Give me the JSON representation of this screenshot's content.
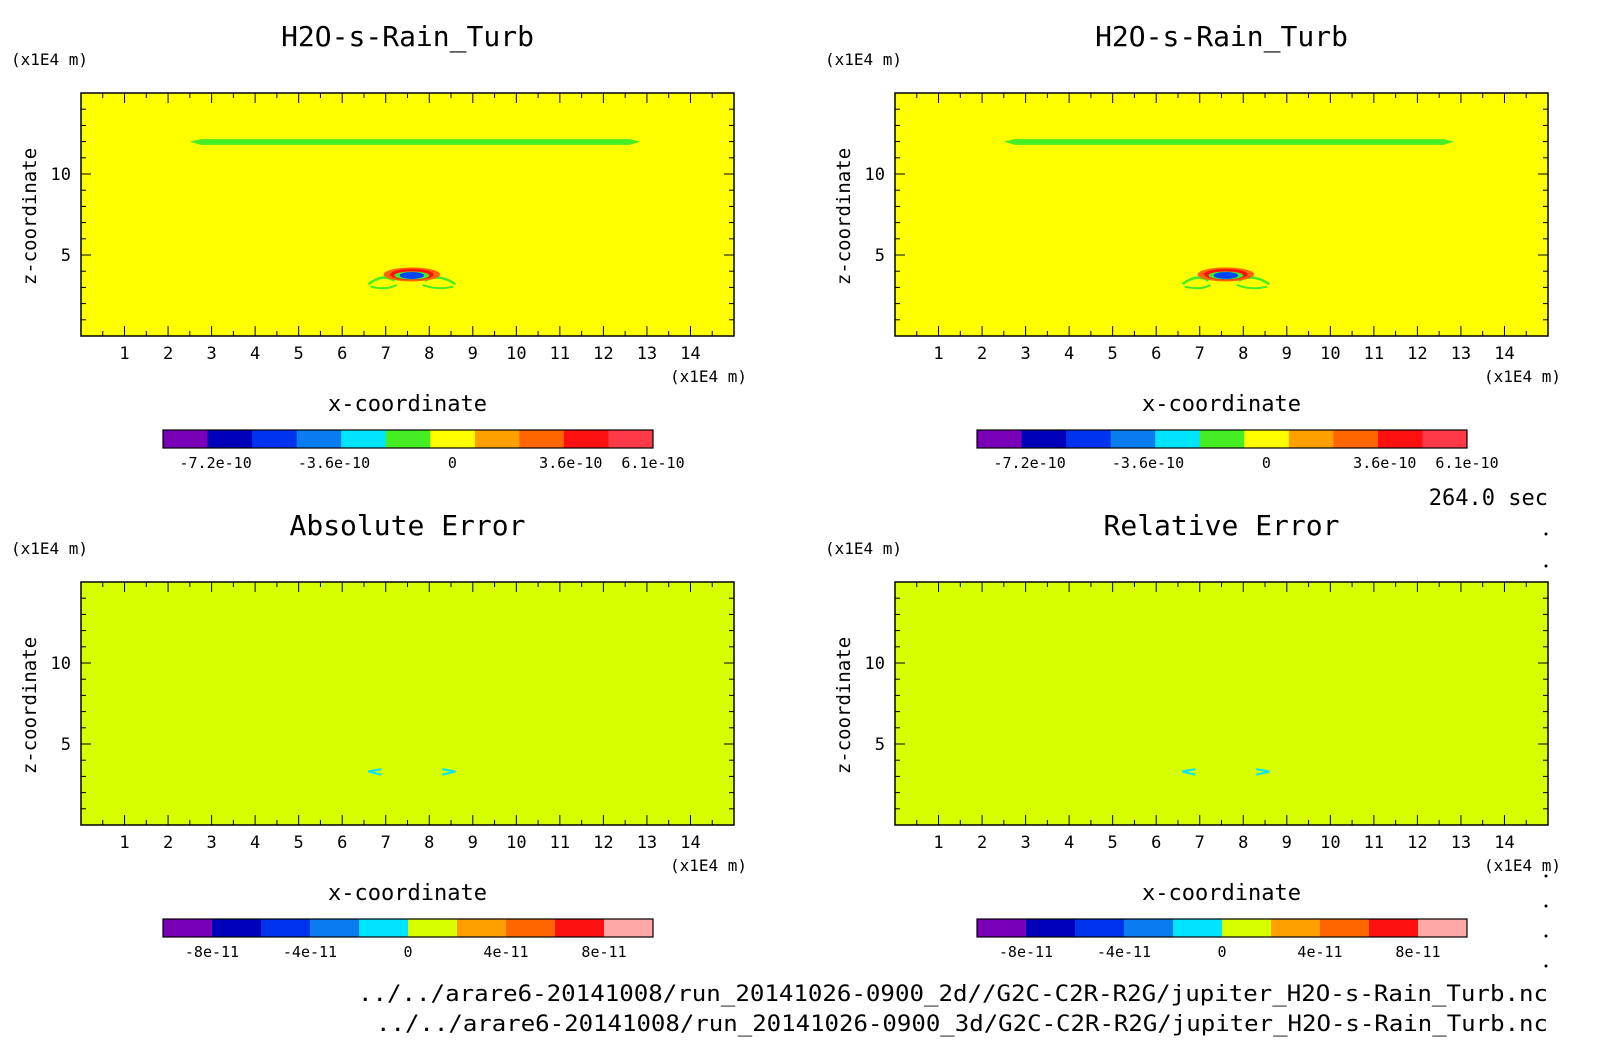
{
  "colors": {
    "yellow_field": "#ffff00",
    "lime_field": "#d7ff00",
    "green_band": "#44ee22",
    "cyan_feature": "#00e5ff",
    "blue_feature": "#0044ff",
    "orange_feature": "#ff6600",
    "red_feature": "#ff1010"
  },
  "chart_data": [
    {
      "type": "heatmap",
      "title": "H2O-s-Rain_Turb",
      "xlabel": "x-coordinate",
      "ylabel": "z-coordinate",
      "x_unit": "(x1E4 m)",
      "y_unit": "(x1E4 m)",
      "xlim": [
        0,
        15
      ],
      "ylim": [
        0,
        15
      ],
      "xticks": [
        1,
        2,
        3,
        4,
        5,
        6,
        7,
        8,
        9,
        10,
        11,
        12,
        13,
        14
      ],
      "yticks": [
        5,
        10
      ],
      "background": "yellow_field",
      "colorbar": {
        "colors": [
          "#7a00b8",
          "#0000b8",
          "#0033ee",
          "#0a7cf0",
          "#00e5ff",
          "#44ee22",
          "#ffff00",
          "#ffa000",
          "#ff6600",
          "#ff1010",
          "#ff3a48"
        ],
        "labels": [
          "-7.2e-10",
          "-3.6e-10",
          "0",
          "3.6e-10",
          "6.1e-10"
        ],
        "label_values": [
          -7.2e-10,
          -3.6e-10,
          0,
          3.6e-10,
          6.1e-10
        ],
        "range": [
          -8.8e-10,
          6.1e-10
        ]
      }
    },
    {
      "type": "heatmap",
      "title": "H2O-s-Rain_Turb",
      "xlabel": "x-coordinate",
      "ylabel": "z-coordinate",
      "x_unit": "(x1E4 m)",
      "y_unit": "(x1E4 m)",
      "xlim": [
        0,
        15
      ],
      "ylim": [
        0,
        15
      ],
      "xticks": [
        1,
        2,
        3,
        4,
        5,
        6,
        7,
        8,
        9,
        10,
        11,
        12,
        13,
        14
      ],
      "yticks": [
        5,
        10
      ],
      "background": "yellow_field",
      "colorbar": {
        "colors": [
          "#7a00b8",
          "#0000b8",
          "#0033ee",
          "#0a7cf0",
          "#00e5ff",
          "#44ee22",
          "#ffff00",
          "#ffa000",
          "#ff6600",
          "#ff1010",
          "#ff3a48"
        ],
        "labels": [
          "-7.2e-10",
          "-3.6e-10",
          "0",
          "3.6e-10",
          "6.1e-10"
        ],
        "label_values": [
          -7.2e-10,
          -3.6e-10,
          0,
          3.6e-10,
          6.1e-10
        ],
        "range": [
          -8.8e-10,
          6.1e-10
        ]
      }
    },
    {
      "type": "heatmap",
      "title": "Absolute Error",
      "xlabel": "x-coordinate",
      "ylabel": "z-coordinate",
      "x_unit": "(x1E4 m)",
      "y_unit": "(x1E4 m)",
      "xlim": [
        0,
        15
      ],
      "ylim": [
        0,
        15
      ],
      "xticks": [
        1,
        2,
        3,
        4,
        5,
        6,
        7,
        8,
        9,
        10,
        11,
        12,
        13,
        14
      ],
      "yticks": [
        5,
        10
      ],
      "background": "lime_field",
      "colorbar": {
        "colors": [
          "#7a00b8",
          "#0000b8",
          "#0033ee",
          "#0a7cf0",
          "#00e5ff",
          "#d7ff00",
          "#ffa000",
          "#ff6600",
          "#ff1010",
          "#ffa8a8"
        ],
        "labels": [
          "-8e-11",
          "-4e-11",
          "0",
          "4e-11",
          "8e-11"
        ],
        "label_values": [
          -8e-11,
          -4e-11,
          0,
          4e-11,
          8e-11
        ],
        "range": [
          -1e-10,
          1e-10
        ]
      }
    },
    {
      "type": "heatmap",
      "title": "Relative Error",
      "xlabel": "x-coordinate",
      "ylabel": "z-coordinate",
      "x_unit": "(x1E4 m)",
      "y_unit": "(x1E4 m)",
      "xlim": [
        0,
        15
      ],
      "ylim": [
        0,
        15
      ],
      "xticks": [
        1,
        2,
        3,
        4,
        5,
        6,
        7,
        8,
        9,
        10,
        11,
        12,
        13,
        14
      ],
      "yticks": [
        5,
        10
      ],
      "background": "lime_field",
      "colorbar": {
        "colors": [
          "#7a00b8",
          "#0000b8",
          "#0033ee",
          "#0a7cf0",
          "#00e5ff",
          "#d7ff00",
          "#ffa000",
          "#ff6600",
          "#ff1010",
          "#ffa8a8"
        ],
        "labels": [
          "-8e-11",
          "-4e-11",
          "0",
          "4e-11",
          "8e-11"
        ],
        "label_values": [
          -8e-11,
          -4e-11,
          0,
          4e-11,
          8e-11
        ],
        "range": [
          -1e-10,
          1e-10
        ]
      }
    }
  ],
  "time_label": "264.0 sec",
  "footer": {
    "file_1": "../../arare6-20141008/run_20141026-0900_2d//G2C-C2R-R2G/jupiter_H2O-s-Rain_Turb.nc",
    "file_2": "../../arare6-20141008/run_20141026-0900_3d/G2C-C2R-R2G/jupiter_H2O-s-Rain_Turb.nc"
  }
}
